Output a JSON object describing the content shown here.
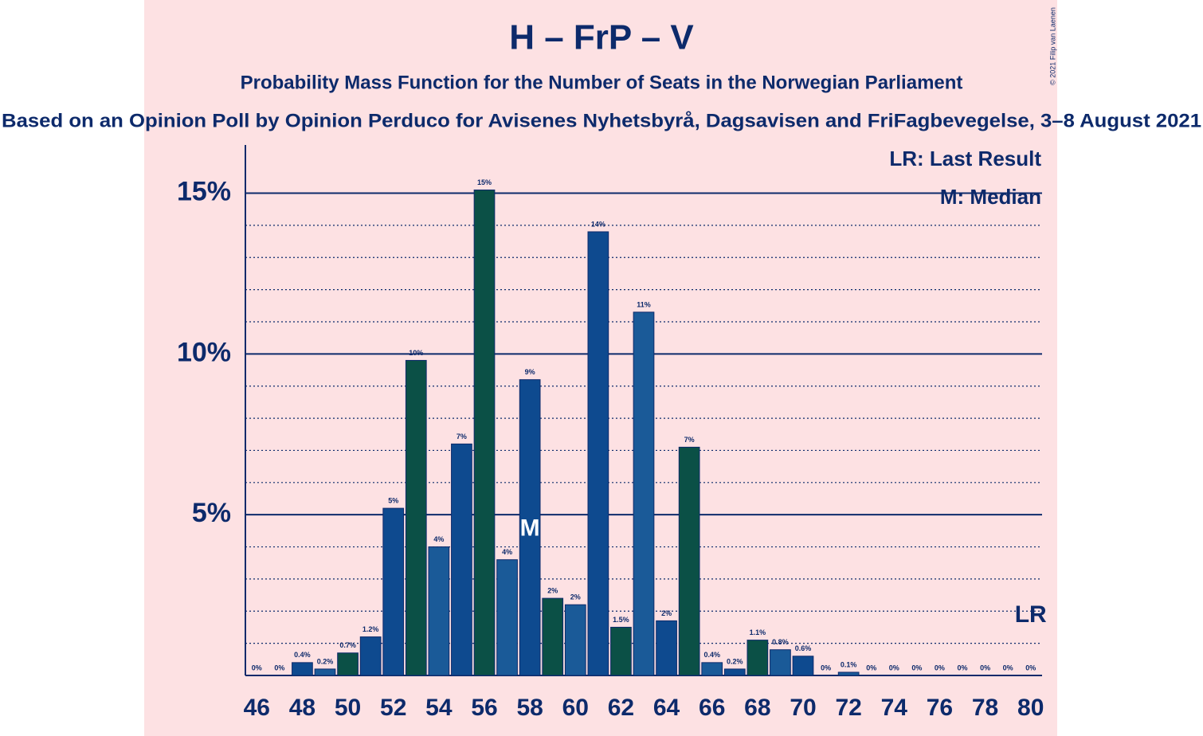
{
  "chart_data": {
    "type": "bar",
    "title": "H – FrP – V",
    "subtitle": "Probability Mass Function for the Number of Seats in the Norwegian Parliament",
    "source": "Based on an Opinion Poll by Opinion Perduco for Avisenes Nyhetsbyrå, Dagsavisen and FriFagbevegelse, 3–8 August 2021",
    "copyright": "© 2021 Filip van Laenen",
    "legend": [
      "LR: Last Result",
      "M: Median"
    ],
    "x": [
      46,
      47,
      48,
      49,
      50,
      51,
      52,
      53,
      54,
      55,
      56,
      57,
      58,
      59,
      60,
      61,
      62,
      63,
      64,
      65,
      66,
      67,
      68,
      69,
      70,
      71,
      72,
      73,
      74,
      75,
      76,
      77,
      78,
      79,
      80
    ],
    "values": [
      0,
      0,
      0.4,
      0.2,
      0.7,
      1.2,
      5.2,
      9.8,
      4.0,
      7.2,
      15.1,
      3.6,
      9.2,
      2.4,
      2.2,
      13.8,
      1.5,
      11.3,
      1.7,
      7.1,
      0.4,
      0.2,
      1.1,
      0.8,
      0.6,
      0,
      0.1,
      0,
      0,
      0,
      0,
      0,
      0,
      0,
      0
    ],
    "value_labels": [
      "0%",
      "0%",
      "0.4%",
      "0.2%",
      "0.7%",
      "1.2%",
      "5%",
      "10%",
      "4%",
      "7%",
      "15%",
      "4%",
      "9%",
      "2%",
      "2%",
      "14%",
      "1.5%",
      "11%",
      "2%",
      "7%",
      "0.4%",
      "0.2%",
      "1.1%",
      "0.8%",
      "0.6%",
      "0%",
      "0.1%",
      "0%",
      "0%",
      "0%",
      "0%",
      "0%",
      "0%",
      "0%",
      "0%"
    ],
    "colors": [
      "#0e4a8f",
      "#1a5a98",
      "#0e4a8f",
      "#1a5a98",
      "#0b5046",
      "#0e4a8f",
      "#0e4a8f",
      "#0b5046",
      "#1a5a98",
      "#0e4a8f",
      "#0b5046",
      "#1a5a98",
      "#0e4a8f",
      "#0b5046",
      "#1a5a98",
      "#0e4a8f",
      "#0b5046",
      "#1a5a98",
      "#0e4a8f",
      "#0b5046",
      "#1a5a98",
      "#0e4a8f",
      "#0b5046",
      "#1a5a98",
      "#0e4a8f",
      "#0b5046",
      "#1a5a98",
      "#0e4a8f",
      "#0b5046",
      "#1a5a98",
      "#0e4a8f",
      "#0b5046",
      "#1a5a98",
      "#0e4a8f",
      "#0b5046"
    ],
    "xlim": [
      45.5,
      80.5
    ],
    "xticks": [
      46,
      48,
      50,
      52,
      54,
      56,
      58,
      60,
      62,
      64,
      66,
      68,
      70,
      72,
      74,
      76,
      78,
      80
    ],
    "ylim": [
      0,
      16.5
    ],
    "yticks": [
      {
        "value": 5,
        "label": "5%"
      },
      {
        "value": 10,
        "label": "10%"
      },
      {
        "value": 15,
        "label": "15%"
      }
    ],
    "minor_yticks": [
      1,
      2,
      3,
      4,
      6,
      7,
      8,
      9,
      11,
      12,
      13,
      14
    ],
    "median": 58,
    "median_label": "M",
    "last_result": 80,
    "last_result_label": "LR"
  }
}
